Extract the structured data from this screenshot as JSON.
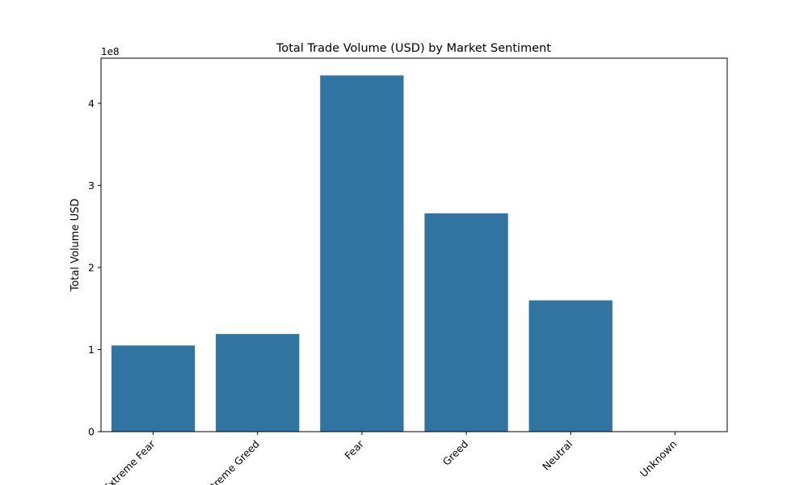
{
  "chart_data": {
    "type": "bar",
    "title": "Total Trade Volume (USD) by Market Sentiment",
    "xlabel": "",
    "ylabel": "Total Volume USD",
    "y_offset_label": "1e8",
    "y_scale": 100000000,
    "categories": [
      "Extreme Fear",
      "Extreme Greed",
      "Fear",
      "Greed",
      "Neutral",
      "Unknown"
    ],
    "values": [
      105000000,
      119000000,
      434000000,
      266000000,
      160000000,
      0
    ],
    "ylim": [
      0,
      455000000
    ],
    "y_ticks": [
      0,
      100000000,
      200000000,
      300000000,
      400000000
    ],
    "y_tick_labels": [
      "0",
      "1",
      "2",
      "3",
      "4"
    ],
    "x_tick_rotation_deg": 45,
    "grid": false,
    "legend": "none",
    "bar_color": "#3274a1"
  }
}
